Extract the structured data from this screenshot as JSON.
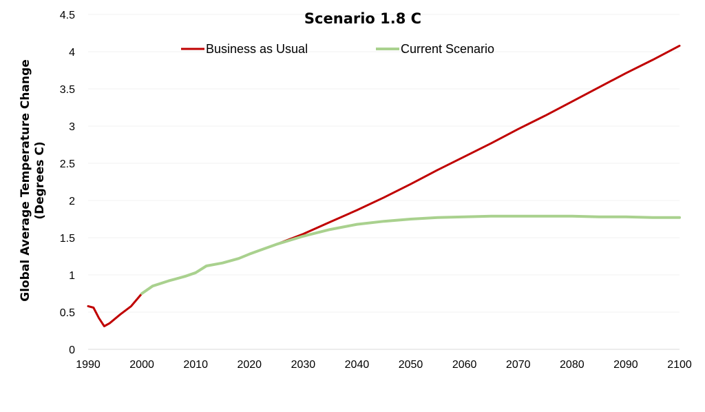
{
  "chart_data": {
    "type": "line",
    "title": "Scenario 1.8 C",
    "xlabel": "",
    "ylabel_lines": [
      "Global Average Temperature Change",
      "(Degrees C)"
    ],
    "xlim": [
      1990,
      2100
    ],
    "ylim": [
      0,
      4.5
    ],
    "x_ticks": [
      "1990",
      "2000",
      "2010",
      "2020",
      "2030",
      "2040",
      "2050",
      "2060",
      "2070",
      "2080",
      "2090",
      "2100"
    ],
    "y_ticks": [
      "0",
      "0.5",
      "1",
      "1.5",
      "2",
      "2.5",
      "3",
      "3.5",
      "4",
      "4.5"
    ],
    "grid": true,
    "legend_position": "top-center",
    "series": [
      {
        "name": "Business as Usual",
        "color": "#c00000",
        "points": [
          [
            1990,
            0.58
          ],
          [
            1991,
            0.56
          ],
          [
            1992,
            0.42
          ],
          [
            1993,
            0.31
          ],
          [
            1994,
            0.35
          ],
          [
            1996,
            0.47
          ],
          [
            1998,
            0.58
          ],
          [
            2000,
            0.75
          ],
          [
            2002,
            0.85
          ],
          [
            2005,
            0.92
          ],
          [
            2008,
            0.98
          ],
          [
            2010,
            1.03
          ],
          [
            2012,
            1.12
          ],
          [
            2015,
            1.16
          ],
          [
            2018,
            1.22
          ],
          [
            2020,
            1.28
          ],
          [
            2025,
            1.41
          ],
          [
            2030,
            1.55
          ],
          [
            2035,
            1.71
          ],
          [
            2040,
            1.87
          ],
          [
            2045,
            2.04
          ],
          [
            2050,
            2.22
          ],
          [
            2055,
            2.41
          ],
          [
            2060,
            2.59
          ],
          [
            2065,
            2.77
          ],
          [
            2070,
            2.96
          ],
          [
            2075,
            3.14
          ],
          [
            2080,
            3.33
          ],
          [
            2085,
            3.52
          ],
          [
            2090,
            3.71
          ],
          [
            2095,
            3.89
          ],
          [
            2100,
            4.08
          ]
        ]
      },
      {
        "name": "Current Scenario",
        "color": "#a9d18e",
        "points": [
          [
            2000,
            0.75
          ],
          [
            2002,
            0.85
          ],
          [
            2005,
            0.92
          ],
          [
            2008,
            0.98
          ],
          [
            2010,
            1.03
          ],
          [
            2012,
            1.12
          ],
          [
            2015,
            1.16
          ],
          [
            2018,
            1.22
          ],
          [
            2020,
            1.28
          ],
          [
            2025,
            1.41
          ],
          [
            2030,
            1.52
          ],
          [
            2035,
            1.61
          ],
          [
            2040,
            1.68
          ],
          [
            2045,
            1.72
          ],
          [
            2050,
            1.75
          ],
          [
            2055,
            1.77
          ],
          [
            2060,
            1.78
          ],
          [
            2065,
            1.79
          ],
          [
            2070,
            1.79
          ],
          [
            2075,
            1.79
          ],
          [
            2080,
            1.79
          ],
          [
            2085,
            1.78
          ],
          [
            2090,
            1.78
          ],
          [
            2095,
            1.77
          ],
          [
            2100,
            1.77
          ]
        ]
      }
    ]
  }
}
